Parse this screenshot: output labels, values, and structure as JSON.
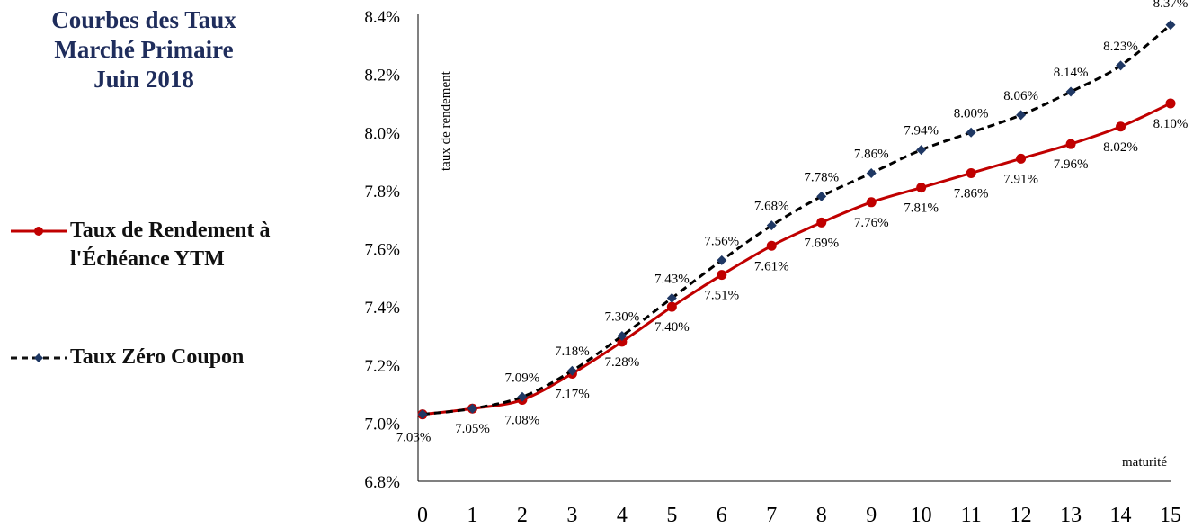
{
  "header": {
    "title_lines": [
      "Courbes des Taux",
      "Marché Primaire",
      "Juin 2018"
    ]
  },
  "chart_data": {
    "type": "line",
    "title": "Courbes des Taux Marché Primaire Juin 2018",
    "xlabel": "maturité",
    "ylabel": "taux de rendement",
    "x": [
      0,
      1,
      2,
      3,
      4,
      5,
      6,
      7,
      8,
      9,
      10,
      11,
      12,
      13,
      14,
      15
    ],
    "xlim": [
      0,
      15
    ],
    "ylim": [
      6.8,
      8.4
    ],
    "y_ticks": [
      "6.8%",
      "7.0%",
      "7.2%",
      "7.4%",
      "7.6%",
      "7.8%",
      "8.0%",
      "8.2%",
      "8.4%"
    ],
    "x_ticks": [
      "0",
      "1",
      "2",
      "3",
      "4",
      "5",
      "6",
      "7",
      "8",
      "9",
      "10",
      "11",
      "12",
      "13",
      "14",
      "15"
    ],
    "grid": false,
    "legend_position": "left",
    "series": [
      {
        "name": "Taux de Rendement à l'Échéance YTM",
        "color": "#c00000",
        "style": "solid",
        "marker": "circle",
        "values": [
          7.03,
          7.05,
          7.08,
          7.17,
          7.28,
          7.4,
          7.51,
          7.61,
          7.69,
          7.76,
          7.81,
          7.86,
          7.91,
          7.96,
          8.02,
          8.1
        ],
        "labels": [
          "7.03%",
          "7.05%",
          "7.08%",
          "7.17%",
          "7.28%",
          "7.40%",
          "7.51%",
          "7.61%",
          "7.69%",
          "7.76%",
          "7.81%",
          "7.86%",
          "7.91%",
          "7.96%",
          "8.02%",
          "8.10%"
        ]
      },
      {
        "name": "Taux Zéro Coupon",
        "color": "#1f3864",
        "style": "dashed",
        "marker": "diamond",
        "values": [
          7.03,
          7.05,
          7.09,
          7.18,
          7.3,
          7.43,
          7.56,
          7.68,
          7.78,
          7.86,
          7.94,
          8.0,
          8.06,
          8.14,
          8.23,
          8.37
        ],
        "labels": [
          "",
          "",
          "7.09%",
          "7.18%",
          "7.30%",
          "7.43%",
          "7.56%",
          "7.68%",
          "7.78%",
          "7.86%",
          "7.94%",
          "8.00%",
          "8.06%",
          "8.14%",
          "8.23%",
          "8.37%"
        ]
      }
    ]
  },
  "legend": {
    "items": [
      {
        "label": "Taux de Rendement à l'Échéance YTM"
      },
      {
        "label": "Taux Zéro Coupon"
      }
    ]
  }
}
